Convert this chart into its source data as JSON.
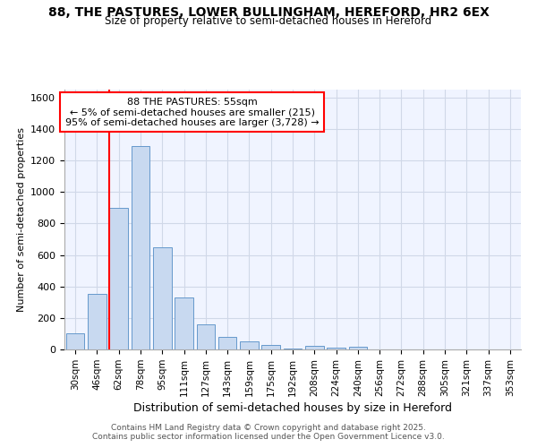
{
  "title1": "88, THE PASTURES, LOWER BULLINGHAM, HEREFORD, HR2 6EX",
  "title2": "Size of property relative to semi-detached houses in Hereford",
  "xlabel": "Distribution of semi-detached houses by size in Hereford",
  "ylabel": "Number of semi-detached properties",
  "categories": [
    "30sqm",
    "46sqm",
    "62sqm",
    "78sqm",
    "95sqm",
    "111sqm",
    "127sqm",
    "143sqm",
    "159sqm",
    "175sqm",
    "192sqm",
    "208sqm",
    "224sqm",
    "240sqm",
    "256sqm",
    "272sqm",
    "288sqm",
    "305sqm",
    "321sqm",
    "337sqm",
    "353sqm"
  ],
  "values": [
    100,
    350,
    900,
    1290,
    650,
    330,
    160,
    80,
    50,
    30,
    5,
    20,
    10,
    15,
    2,
    2,
    2,
    2,
    2,
    2,
    2
  ],
  "bar_color": "#c8d9f0",
  "bar_edge_color": "#6699cc",
  "vline_pos": 2,
  "vline_color": "red",
  "annotation_title": "88 THE PASTURES: 55sqm",
  "annotation_line1": "← 5% of semi-detached houses are smaller (215)",
  "annotation_line2": "95% of semi-detached houses are larger (3,728) →",
  "ylim": [
    0,
    1650
  ],
  "yticks": [
    0,
    200,
    400,
    600,
    800,
    1000,
    1200,
    1400,
    1600
  ],
  "bg_color": "#ffffff",
  "plot_bg_color": "#f0f4ff",
  "grid_color": "#d0d8e8",
  "footer_line1": "Contains HM Land Registry data © Crown copyright and database right 2025.",
  "footer_line2": "Contains public sector information licensed under the Open Government Licence v3.0."
}
